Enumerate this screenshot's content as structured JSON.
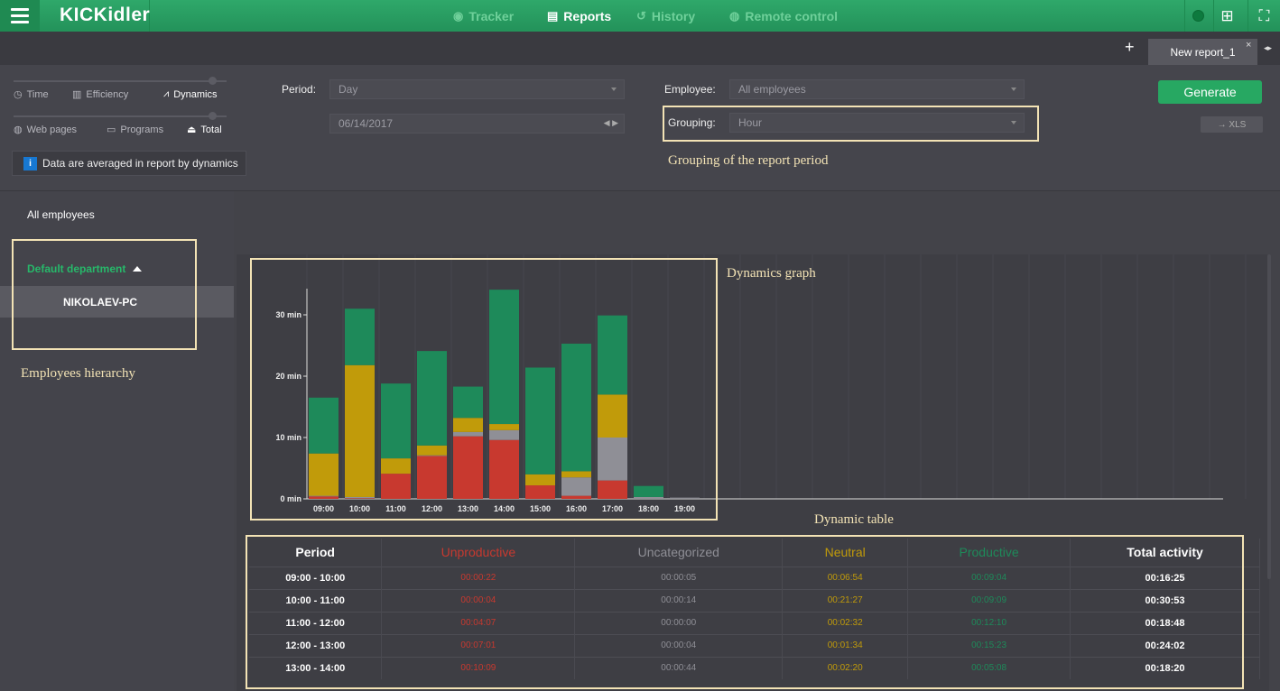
{
  "app": {
    "logo": "KICKidler"
  },
  "nav": {
    "items": [
      {
        "label": "Tracker",
        "icon": "eye-icon"
      },
      {
        "label": "Reports",
        "icon": "document-icon"
      },
      {
        "label": "History",
        "icon": "history-icon"
      },
      {
        "label": "Remote control",
        "icon": "remote-icon"
      }
    ],
    "active": "Reports"
  },
  "tabs": {
    "active_label": "New report_1",
    "close": "×",
    "add": "+",
    "scroll_arrows": "◂▸"
  },
  "report_types_row1": [
    {
      "label": "Time",
      "icon": "clock-icon"
    },
    {
      "label": "Efficiency",
      "icon": "bar-chart-icon"
    },
    {
      "label": "Dynamics",
      "icon": "line-chart-icon"
    }
  ],
  "report_types_row2": [
    {
      "label": "Web pages",
      "icon": "globe-icon"
    },
    {
      "label": "Programs",
      "icon": "window-icon"
    },
    {
      "label": "Total",
      "icon": "tray-icon"
    }
  ],
  "info_note": "Data are averaged in report by dynamics",
  "filters": {
    "period_label": "Period:",
    "period_value": "Day",
    "date_value": "06/14/2017",
    "employee_label": "Employee:",
    "employee_value": "All employees",
    "grouping_label": "Grouping:",
    "grouping_value": "Hour"
  },
  "buttons": {
    "generate": "Generate",
    "xls": "→ XLS"
  },
  "annotations": {
    "grouping": "Grouping of the report period",
    "graph": "Dynamics graph",
    "hierarchy": "Employees hierarchy",
    "table": "Dynamic table"
  },
  "tree": {
    "root": "All employees",
    "department": "Default department",
    "employee": "NIKOLAEV-PC"
  },
  "colors": {
    "unproductive": "#c8392f",
    "uncategorized": "#8f8f96",
    "neutral": "#c19b0a",
    "productive": "#1e8a5a",
    "brand": "#27a862"
  },
  "chart_data": {
    "type": "bar",
    "stacked": true,
    "categories": [
      "09:00",
      "10:00",
      "11:00",
      "12:00",
      "13:00",
      "14:00",
      "15:00",
      "16:00",
      "17:00",
      "18:00",
      "19:00"
    ],
    "series": [
      {
        "name": "Unproductive",
        "values": [
          0.4,
          0.1,
          4.1,
          7.0,
          10.2,
          9.6,
          2.2,
          0.5,
          3.0,
          0.0,
          0.0
        ]
      },
      {
        "name": "Uncategorized",
        "values": [
          0.1,
          0.2,
          0.0,
          0.1,
          0.7,
          1.6,
          0.0,
          3.0,
          7.0,
          0.3,
          0.2
        ]
      },
      {
        "name": "Neutral",
        "values": [
          6.9,
          21.5,
          2.5,
          1.6,
          2.3,
          1.0,
          1.8,
          1.0,
          7.0,
          0.0,
          0.0
        ]
      },
      {
        "name": "Productive",
        "values": [
          9.1,
          9.2,
          12.2,
          15.4,
          5.1,
          21.9,
          17.4,
          20.8,
          12.9,
          1.8,
          0.0
        ]
      }
    ],
    "y_ticks": [
      "0 min",
      "10 min",
      "20 min",
      "30 min"
    ],
    "ylim": [
      0,
      34
    ]
  },
  "table": {
    "headers": [
      "Period",
      "Unproductive",
      "Uncategorized",
      "Neutral",
      "Productive",
      "Total activity"
    ],
    "rows": [
      [
        "09:00 - 10:00",
        "00:00:22",
        "00:00:05",
        "00:06:54",
        "00:09:04",
        "00:16:25"
      ],
      [
        "10:00 - 11:00",
        "00:00:04",
        "00:00:14",
        "00:21:27",
        "00:09:09",
        "00:30:53"
      ],
      [
        "11:00 - 12:00",
        "00:04:07",
        "00:00:00",
        "00:02:32",
        "00:12:10",
        "00:18:48"
      ],
      [
        "12:00 - 13:00",
        "00:07:01",
        "00:00:04",
        "00:01:34",
        "00:15:23",
        "00:24:02"
      ],
      [
        "13:00 - 14:00",
        "00:10:09",
        "00:00:44",
        "00:02:20",
        "00:05:08",
        "00:18:20"
      ]
    ]
  }
}
